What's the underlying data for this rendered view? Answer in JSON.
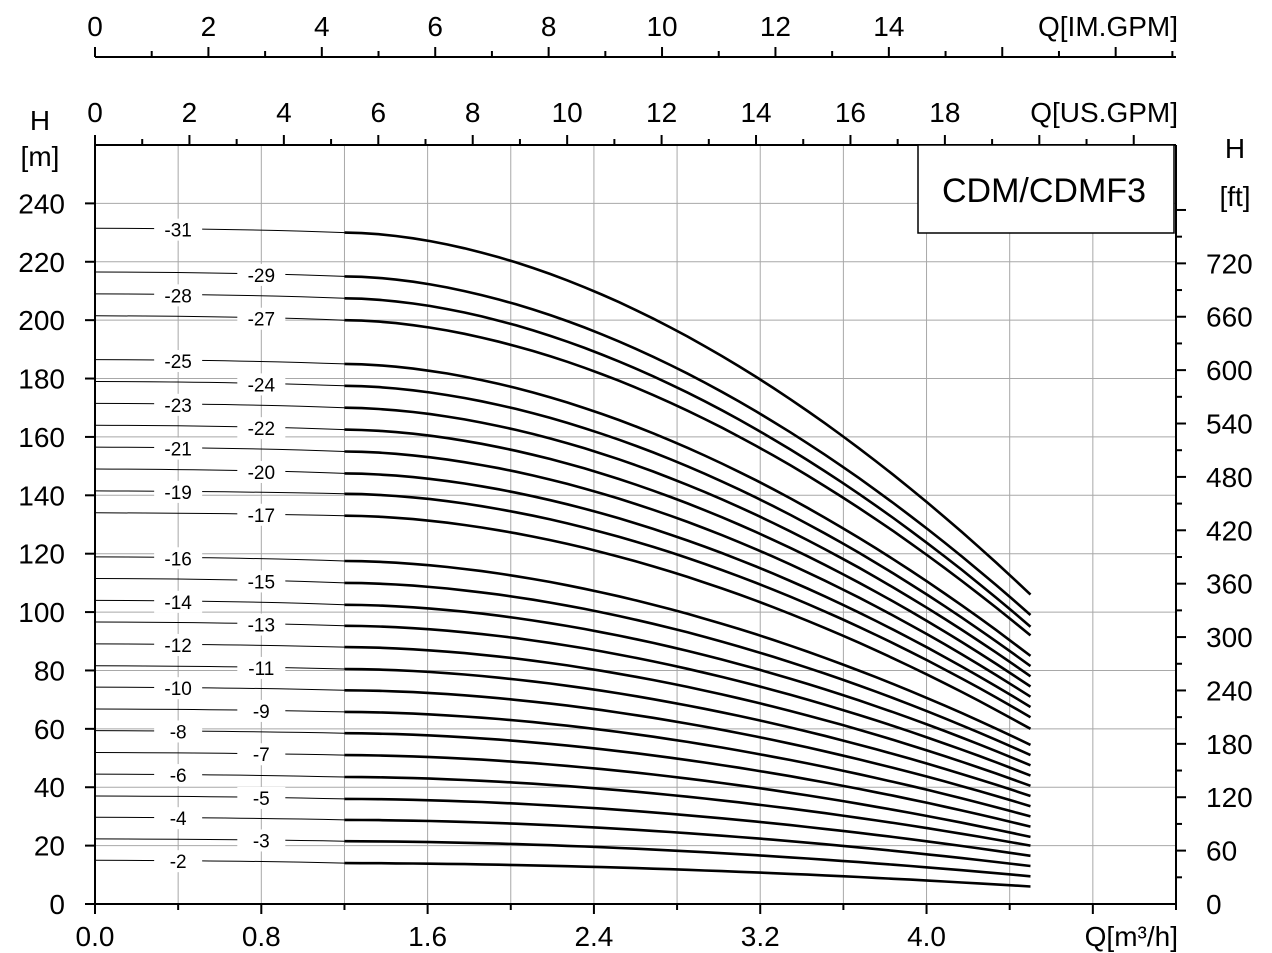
{
  "chart_data": {
    "type": "line",
    "title": "CDM/CDMF3",
    "x_axis": {
      "label": "Q[m³/h]",
      "range": [
        0,
        5.2
      ],
      "ticks": [
        "0.0",
        "0.8",
        "1.6",
        "2.4",
        "3.2",
        "4.0"
      ],
      "tick_values": [
        0,
        0.8,
        1.6,
        2.4,
        3.2,
        4.0
      ]
    },
    "x_axis_us": {
      "label": "Q[US.GPM]",
      "ticks": [
        "0",
        "2",
        "4",
        "6",
        "8",
        "10",
        "12",
        "14",
        "16",
        "18"
      ],
      "tick_values": [
        0,
        2,
        4,
        6,
        8,
        10,
        12,
        14,
        16,
        18
      ]
    },
    "x_axis_im": {
      "label": "Q[IM.GPM]",
      "ticks": [
        "0",
        "2",
        "4",
        "6",
        "8",
        "10",
        "12",
        "14"
      ],
      "tick_values": [
        0,
        2,
        4,
        6,
        8,
        10,
        12,
        14
      ]
    },
    "y_axis_left": {
      "label_top": "H",
      "label_unit": "[m]",
      "range": [
        0,
        260
      ],
      "ticks": [
        "0",
        "20",
        "40",
        "60",
        "80",
        "100",
        "120",
        "140",
        "160",
        "180",
        "200",
        "220",
        "240"
      ],
      "tick_values": [
        0,
        20,
        40,
        60,
        80,
        100,
        120,
        140,
        160,
        180,
        200,
        220,
        240
      ]
    },
    "y_axis_right": {
      "label_top": "H",
      "label_unit": "[ft]",
      "ticks": [
        "0",
        "60",
        "120",
        "180",
        "240",
        "300",
        "360",
        "420",
        "480",
        "540",
        "600",
        "660",
        "720"
      ],
      "tick_values": [
        0,
        60,
        120,
        180,
        240,
        300,
        360,
        420,
        480,
        540,
        600,
        660,
        720
      ]
    },
    "grid": true,
    "x_start": 0,
    "x_op_start": 1.2,
    "x_end": 4.5,
    "series": [
      {
        "name": "-2",
        "h_start": 15,
        "h_op": 14,
        "h_end": 6
      },
      {
        "name": "-3",
        "h_start": 22.3,
        "h_op": 21.5,
        "h_end": 9.5
      },
      {
        "name": "-4",
        "h_start": 29.7,
        "h_op": 28.8,
        "h_end": 13
      },
      {
        "name": "-5",
        "h_start": 37,
        "h_op": 36,
        "h_end": 16.5
      },
      {
        "name": "-6",
        "h_start": 44.5,
        "h_op": 43.5,
        "h_end": 20
      },
      {
        "name": "-7",
        "h_start": 51.9,
        "h_op": 51,
        "h_end": 23
      },
      {
        "name": "-8",
        "h_start": 59.4,
        "h_op": 58.5,
        "h_end": 26.5
      },
      {
        "name": "-9",
        "h_start": 66.8,
        "h_op": 65.8,
        "h_end": 30
      },
      {
        "name": "-10",
        "h_start": 74.3,
        "h_op": 73.2,
        "h_end": 33.5
      },
      {
        "name": "-11",
        "h_start": 81.6,
        "h_op": 80.5,
        "h_end": 37
      },
      {
        "name": "-12",
        "h_start": 89.1,
        "h_op": 88,
        "h_end": 40.5
      },
      {
        "name": "-13",
        "h_start": 96.6,
        "h_op": 95.3,
        "h_end": 44
      },
      {
        "name": "-14",
        "h_start": 104,
        "h_op": 102.5,
        "h_end": 47.5
      },
      {
        "name": "-15",
        "h_start": 111.5,
        "h_op": 110,
        "h_end": 51
      },
      {
        "name": "-16",
        "h_start": 118.9,
        "h_op": 117.5,
        "h_end": 54.5
      },
      {
        "name": "-17",
        "h_start": 134,
        "h_op": 133,
        "h_end": 60
      },
      {
        "name": "-19",
        "h_start": 141.5,
        "h_op": 140.5,
        "h_end": 64
      },
      {
        "name": "-20",
        "h_start": 149,
        "h_op": 147.5,
        "h_end": 67.5
      },
      {
        "name": "-21",
        "h_start": 156.5,
        "h_op": 155,
        "h_end": 71
      },
      {
        "name": "-22",
        "h_start": 164,
        "h_op": 162.5,
        "h_end": 74.5
      },
      {
        "name": "-23",
        "h_start": 171.5,
        "h_op": 170,
        "h_end": 78
      },
      {
        "name": "-24",
        "h_start": 179,
        "h_op": 177.5,
        "h_end": 81.5
      },
      {
        "name": "-25",
        "h_start": 186.5,
        "h_op": 185,
        "h_end": 85
      },
      {
        "name": "-27",
        "h_start": 201.5,
        "h_op": 200,
        "h_end": 92
      },
      {
        "name": "-28",
        "h_start": 209,
        "h_op": 207.5,
        "h_end": 95
      },
      {
        "name": "-29",
        "h_start": 216.5,
        "h_op": 215,
        "h_end": 99
      },
      {
        "name": "-31",
        "h_start": 231.5,
        "h_op": 230,
        "h_end": 106
      }
    ]
  }
}
